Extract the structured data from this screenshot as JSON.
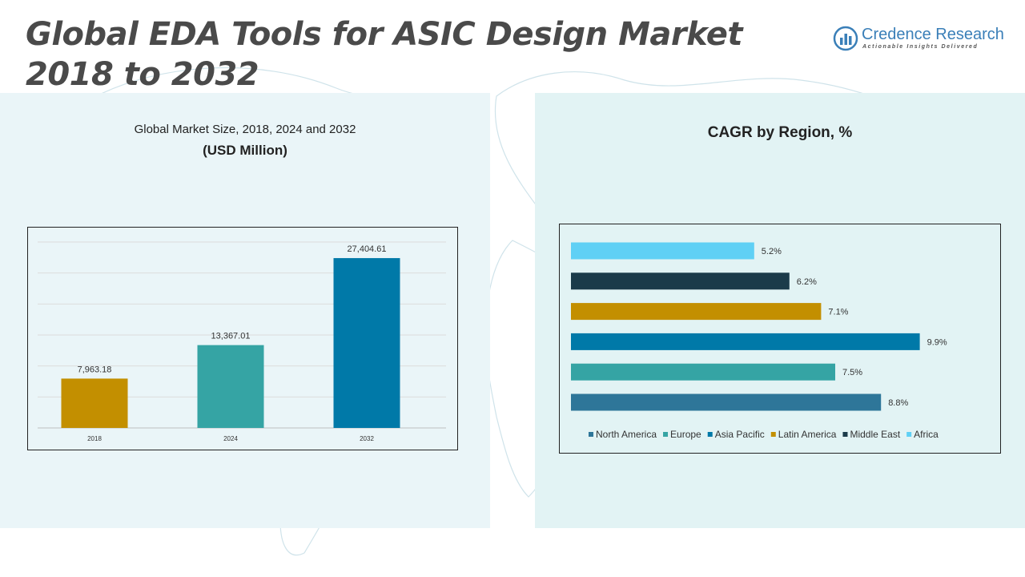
{
  "page": {
    "title_line1": "Global EDA Tools for ASIC Design Market",
    "title_line2": "2018 to 2032"
  },
  "logo": {
    "name": "Credence Research",
    "tagline": "Actionable Insights Delivered"
  },
  "left_panel": {
    "subtitle": "Global Market Size, 2018, 2024 and 2032",
    "unit": "(USD Million)"
  },
  "right_panel": {
    "title": "CAGR by Region, %"
  },
  "colors": {
    "gold": "#c38f00",
    "teal": "#35a4a4",
    "blue": "#0079a8",
    "steel": "#2e7699",
    "dark": "#1b3b4a",
    "sky": "#5fd0f5"
  },
  "chart_data": [
    {
      "type": "bar",
      "categories": [
        "2018",
        "2024",
        "2032"
      ],
      "values": [
        7963.18,
        13367.01,
        27404.61
      ],
      "value_labels": [
        "7,963.18",
        "13,367.01",
        "27,404.61"
      ],
      "colors": [
        "#c38f00",
        "#35a4a4",
        "#0079a8"
      ],
      "ylim": [
        0,
        30000
      ],
      "grid": true,
      "legend": "none"
    },
    {
      "type": "bar",
      "orientation": "horizontal",
      "categories": [
        "North America",
        "Europe",
        "Asia Pacific",
        "Latin America",
        "Middle East",
        "Africa"
      ],
      "values": [
        8.8,
        7.5,
        9.9,
        7.1,
        6.2,
        5.2
      ],
      "value_labels": [
        "8.8%",
        "7.5%",
        "9.9%",
        "7.1%",
        "6.2%",
        "5.2%"
      ],
      "colors": [
        "#2e7699",
        "#35a4a4",
        "#0079a8",
        "#c38f00",
        "#1b3b4a",
        "#5fd0f5"
      ],
      "xlim": [
        0,
        10
      ],
      "grid": false,
      "legend": "bottom"
    }
  ]
}
